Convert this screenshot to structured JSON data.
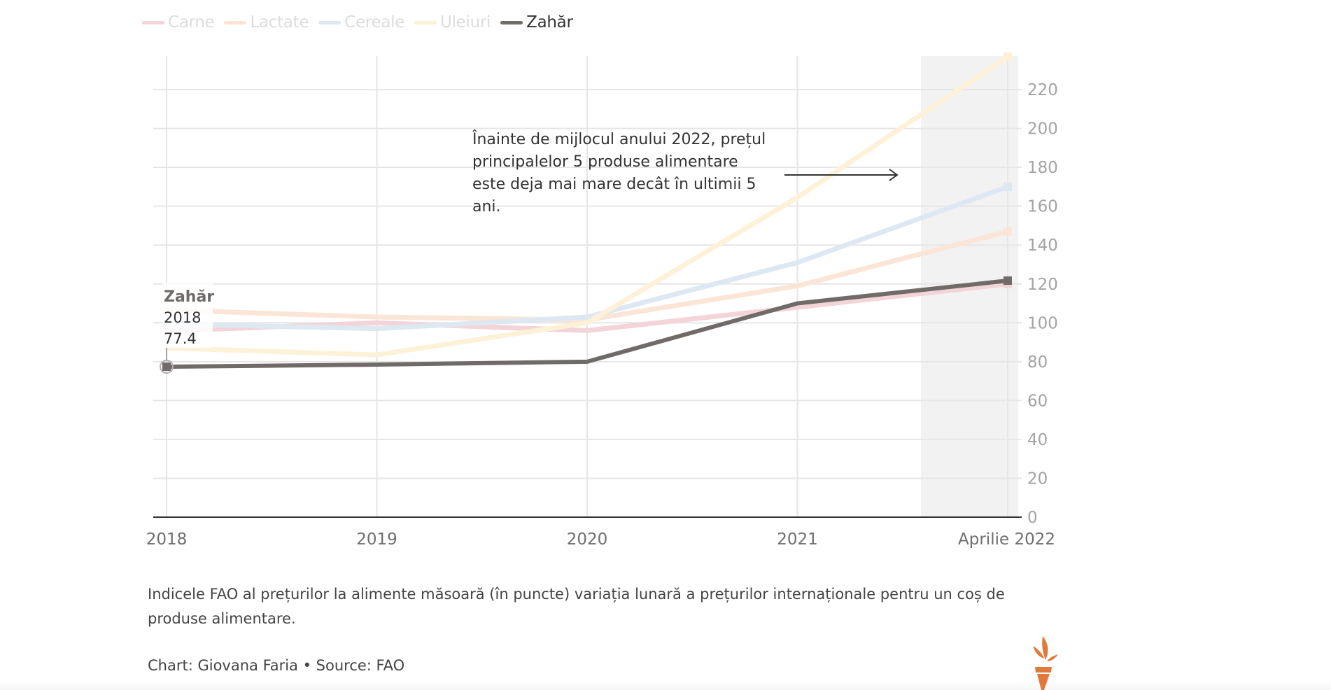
{
  "legend": [
    {
      "name": "Carne",
      "color": "#f2d4d9",
      "active": false
    },
    {
      "name": "Lactate",
      "color": "#fbe5d6",
      "active": false
    },
    {
      "name": "Cereale",
      "color": "#dde8f3",
      "active": false
    },
    {
      "name": "Uleiuri",
      "color": "#fdf2d8",
      "active": false
    },
    {
      "name": "Zahăr",
      "color": "#706b69",
      "active": true
    }
  ],
  "chart_data": {
    "type": "line",
    "title": "",
    "xlabel": "",
    "ylabel": "",
    "categories": [
      "2018",
      "2019",
      "2020",
      "2021",
      "Aprilie 2022"
    ],
    "ylim": [
      0,
      236
    ],
    "yticks": [
      0,
      20,
      40,
      60,
      80,
      100,
      120,
      140,
      160,
      180,
      200,
      220
    ],
    "grid": true,
    "highlight_category": "Aprilie 2022",
    "series": [
      {
        "name": "Carne",
        "color": "#f2d4d9",
        "active": false,
        "values": [
          95.8,
          100,
          96,
          108,
          120
        ]
      },
      {
        "name": "Lactate",
        "color": "#fbe5d6",
        "active": false,
        "values": [
          106.6,
          103,
          101.5,
          119,
          147
        ]
      },
      {
        "name": "Cereale",
        "color": "#dde8f3",
        "active": false,
        "values": [
          99.4,
          97,
          103,
          131,
          170
        ]
      },
      {
        "name": "Uleiuri",
        "color": "#fdf2d8",
        "active": false,
        "values": [
          87,
          83.5,
          100,
          164.5,
          237
        ]
      },
      {
        "name": "Zahăr",
        "color": "#706b69",
        "active": true,
        "values": [
          77.4,
          78.5,
          80,
          110,
          121.7
        ]
      }
    ],
    "annotation": {
      "lines": [
        "Înainte de mijlocul anului 2022, prețul",
        "principalelor 5 produse alimentare",
        "este deja mai mare decât în ultimii 5",
        "ani."
      ],
      "arrow": "right"
    },
    "tooltip": {
      "series": "Zahăr",
      "category": "2018",
      "value": "77.4"
    }
  },
  "note": "Indicele FAO al prețurilor la alimente măsoară (în puncte) variația lunară a prețurilor internaționale pentru un coș de produse alimentare.",
  "credit": "Chart: Giovana Faria • Source: FAO",
  "logo": {
    "icon": "torch-logo-icon",
    "color": "#e07a3a"
  }
}
